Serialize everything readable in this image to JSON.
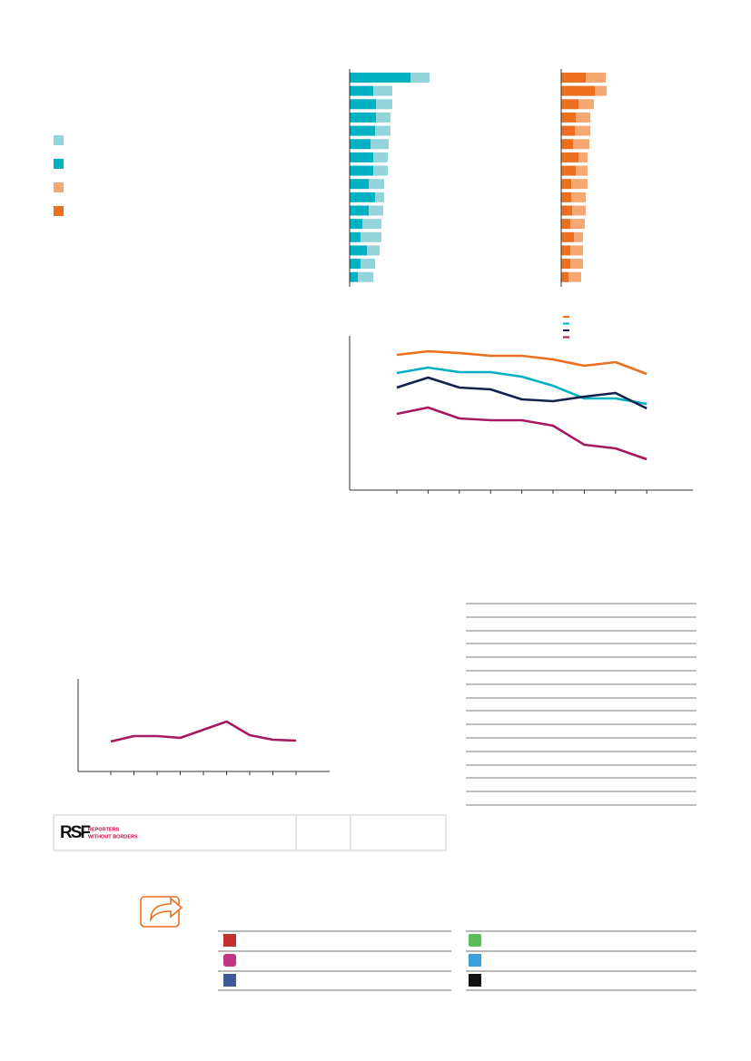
{
  "logo": {
    "mark": "RSF",
    "line1": "REPORTERS",
    "line2": "WITHOUT BORDERS"
  },
  "chart_data": [
    {
      "type": "bar",
      "orientation": "horizontal",
      "stacked": true,
      "xlim": [
        0,
        215
      ],
      "series": [
        {
          "color": "#00b1c1",
          "values": [
            67,
            26,
            29,
            29,
            28,
            23,
            26,
            26,
            21,
            28,
            21,
            14,
            12,
            19,
            12,
            9
          ]
        },
        {
          "color": "#94d5dc",
          "values": [
            21,
            21,
            18,
            16,
            17,
            20,
            16,
            16,
            17,
            10,
            16,
            21,
            23,
            14,
            16,
            17
          ]
        }
      ]
    },
    {
      "type": "bar",
      "orientation": "horizontal",
      "stacked": true,
      "xlim": [
        0,
        200
      ],
      "series": [
        {
          "color": "#ec6f1f",
          "values": [
            27,
            37,
            19,
            16,
            15,
            13,
            19,
            16,
            11,
            11,
            12,
            10,
            14,
            10,
            10,
            8
          ]
        },
        {
          "color": "#f5a872",
          "values": [
            22,
            13,
            17,
            16,
            17,
            18,
            10,
            13,
            18,
            16,
            15,
            16,
            10,
            14,
            14,
            14
          ]
        }
      ]
    },
    {
      "type": "line",
      "ylim": [
        0,
        170
      ],
      "categories": [
        null,
        null,
        null,
        null,
        null,
        null,
        null,
        null,
        null
      ],
      "series": [
        {
          "color": "#ec6f1f",
          "values": [
            149,
            153,
            151,
            148,
            148,
            144,
            137,
            141,
            128
          ]
        },
        {
          "color": "#00b1c1",
          "values": [
            129,
            135,
            130,
            130,
            125,
            115,
            101,
            101,
            95
          ]
        },
        {
          "color": "#13214f",
          "values": [
            113,
            124,
            113,
            111,
            100,
            98,
            103,
            107,
            90
          ]
        },
        {
          "color": "#a7195f",
          "values": [
            84,
            91,
            79,
            77,
            77,
            71,
            50,
            46,
            34
          ]
        }
      ]
    },
    {
      "type": "line",
      "ylim": [
        0,
        102
      ],
      "categories": [
        null,
        null,
        null,
        null,
        null,
        null,
        null,
        null,
        null
      ],
      "series": [
        {
          "color": "#a7195f",
          "values": [
            33,
            39,
            39,
            37,
            46,
            55,
            40,
            35,
            34
          ]
        }
      ]
    }
  ]
}
